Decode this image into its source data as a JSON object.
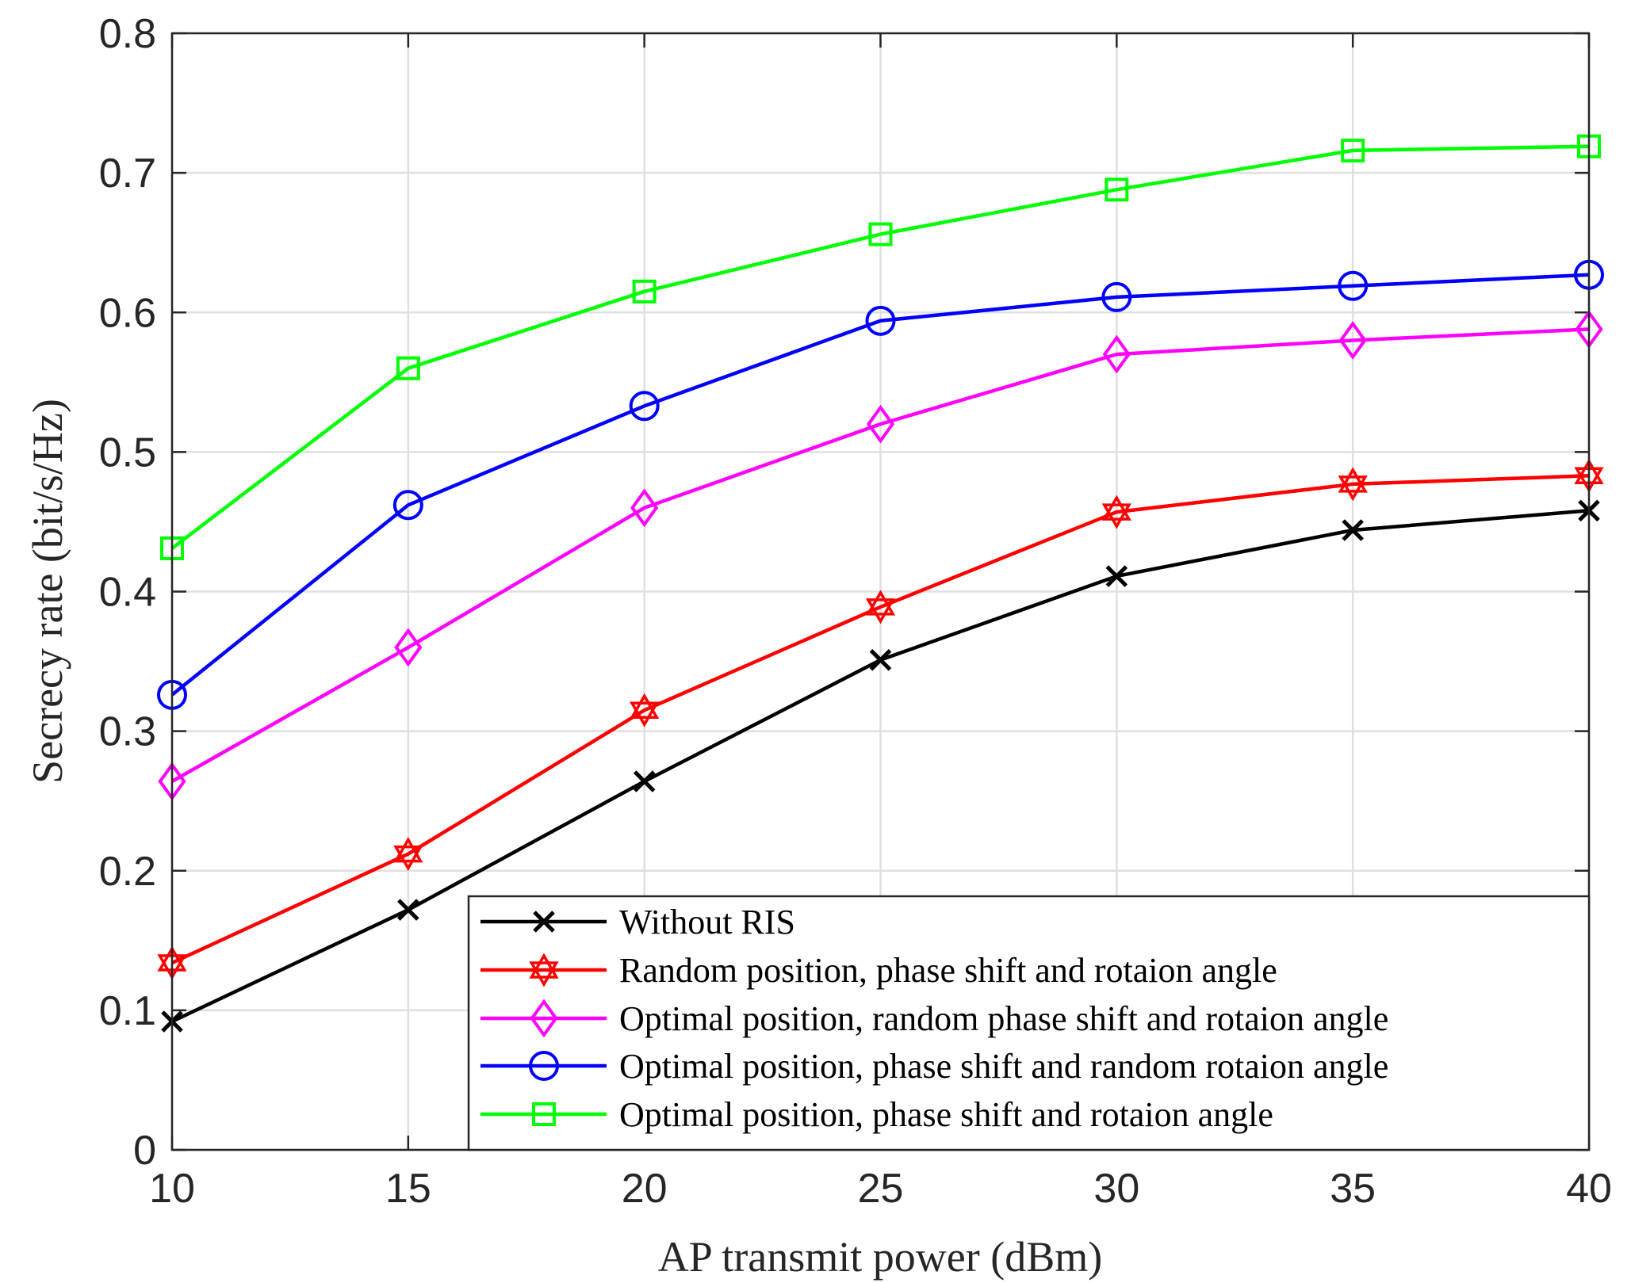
{
  "chart_data": {
    "type": "line",
    "title": "",
    "xlabel": "AP transmit power (dBm)",
    "ylabel": "Secrecy rate (bit/s/Hz)",
    "xlim": [
      10,
      40
    ],
    "ylim": [
      0,
      0.8
    ],
    "grid": true,
    "legend_location": "bottom-right",
    "x": [
      10,
      15,
      20,
      25,
      30,
      35,
      40
    ],
    "x_ticks": [
      "10",
      "15",
      "20",
      "25",
      "30",
      "35",
      "40"
    ],
    "y_ticks": [
      0,
      0.1,
      0.2,
      0.3,
      0.4,
      0.5,
      0.6,
      0.7,
      0.8
    ],
    "y_tick_labels": [
      "0",
      "0.1",
      "0.2",
      "0.3",
      "0.4",
      "0.5",
      "0.6",
      "0.7",
      "0.8"
    ],
    "series": [
      {
        "name": "Without RIS",
        "color": "#000000",
        "marker": "x",
        "values": [
          0.092,
          0.172,
          0.264,
          0.351,
          0.411,
          0.444,
          0.458
        ]
      },
      {
        "name": "Random position, phase shift and rotaion angle",
        "color": "#ff0000",
        "marker": "hexagram",
        "values": [
          0.134,
          0.212,
          0.315,
          0.389,
          0.457,
          0.477,
          0.483
        ]
      },
      {
        "name": "Optimal position, random phase shift and rotaion angle",
        "color": "#ff00ff",
        "marker": "diamond",
        "values": [
          0.264,
          0.36,
          0.46,
          0.52,
          0.57,
          0.58,
          0.588
        ]
      },
      {
        "name": "Optimal position, phase shift and random rotaion angle",
        "color": "#0000ff",
        "marker": "circle",
        "values": [
          0.326,
          0.462,
          0.533,
          0.594,
          0.611,
          0.619,
          0.627
        ]
      },
      {
        "name": "Optimal position, phase shift and rotaion angle",
        "color": "#00ff00",
        "marker": "square",
        "values": [
          0.431,
          0.56,
          0.615,
          0.656,
          0.688,
          0.716,
          0.719
        ]
      }
    ]
  }
}
